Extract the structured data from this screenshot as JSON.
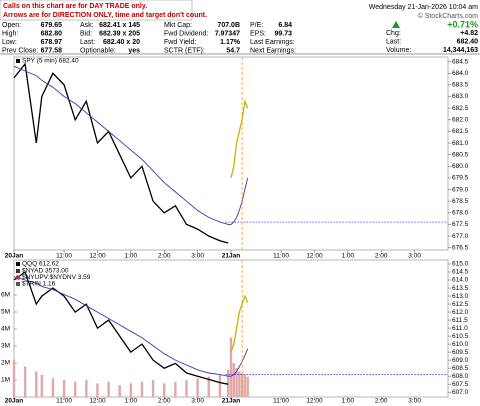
{
  "notice": [
    "Calls on this chart are for DAY TRADE only.",
    "Arrows are for DIRECTION ONLY, time and target don't count."
  ],
  "quote": {
    "rows": [
      [
        [
          "Open:",
          "679.65"
        ],
        [
          "Ask:",
          "682.41 x 145"
        ],
        [
          "Mkt Cap:",
          "707.0B"
        ],
        [
          "P/E:",
          "6.84"
        ]
      ],
      [
        [
          "High:",
          "682.80"
        ],
        [
          "Bid:",
          "682.39 x 205"
        ],
        [
          "Fwd Dividend:",
          "7.97347"
        ],
        [
          "EPS:",
          "99.73"
        ]
      ],
      [
        [
          "Low:",
          "678.97"
        ],
        [
          "Last:",
          "682.40 x 20"
        ],
        [
          "Fwd Yield:",
          "1.17%"
        ],
        [
          "Last Earnings:"
        ]
      ],
      [
        [
          "Prev Close:",
          "677.58"
        ],
        [
          "Optionable:",
          "yes"
        ],
        [
          "SCTR (ETF):",
          "54.7"
        ],
        [
          "Next Earnings:"
        ]
      ]
    ],
    "date": "Wednesday  21-Jan-2026  10:04 am",
    "watermark": "© StockCharts.com",
    "change_pct": "+0.71%",
    "side": [
      [
        "Chg:",
        "+4.82"
      ],
      [
        "Last:",
        "682.40"
      ],
      [
        "Volume:",
        "14,344,163"
      ]
    ]
  },
  "chart_data": [
    {
      "type": "line",
      "title": "SPY (5 min) 682.40",
      "x": [
        0,
        4,
        8,
        10,
        14,
        18,
        22,
        26,
        30,
        34,
        38,
        42,
        46,
        50,
        54,
        58,
        62,
        66,
        70,
        74,
        77,
        78,
        79,
        80,
        81,
        82,
        83,
        84
      ],
      "xlim": [
        0,
        156
      ],
      "xticks": [
        {
          "value": 0,
          "label": "20Jan"
        },
        {
          "value": 18,
          "label": "11:00"
        },
        {
          "value": 30,
          "label": "12:00"
        },
        {
          "value": 42,
          "label": "1:00"
        },
        {
          "value": 54,
          "label": "2:00"
        },
        {
          "value": 66,
          "label": "3:00"
        },
        {
          "value": 78,
          "label": "21Jan"
        },
        {
          "value": 96,
          "label": "11:00"
        },
        {
          "value": 108,
          "label": "12:00"
        },
        {
          "value": 120,
          "label": "1:00"
        },
        {
          "value": 132,
          "label": "2:00"
        },
        {
          "value": 144,
          "label": "3:00"
        }
      ],
      "ylim": [
        676.4,
        684.7
      ],
      "yticks": [
        676.5,
        {
          "value": 677,
          "label": "677.0"
        },
        677.5,
        {
          "value": 678,
          "label": "678.0"
        },
        678.5,
        {
          "value": 679,
          "label": "679.0"
        },
        679.5,
        {
          "value": 680,
          "label": "680.0"
        },
        680.5,
        {
          "value": 681,
          "label": "681.0"
        },
        681.5,
        {
          "value": 682,
          "label": "682.0"
        },
        682.5,
        {
          "value": 683,
          "label": "683.0"
        },
        683.5,
        {
          "value": 684,
          "label": "684.0"
        },
        684.5
      ],
      "series": [
        {
          "name": "SPY",
          "color": "#000000",
          "values": [
            683.8,
            684.4,
            681.0,
            683.0,
            684.0,
            683.5,
            682.0,
            682.8,
            681.0,
            681.5,
            680.5,
            679.5,
            680.0,
            678.5,
            678.0,
            678.3,
            677.5,
            677.3,
            677.0,
            676.8,
            676.7,
            null,
            null,
            null,
            null,
            null,
            null,
            null
          ]
        },
        {
          "color": "#c8b400",
          "values": [
            null,
            null,
            null,
            null,
            null,
            null,
            null,
            null,
            null,
            null,
            null,
            null,
            null,
            null,
            null,
            null,
            null,
            null,
            null,
            null,
            null,
            679.5,
            680.0,
            681.0,
            681.5,
            682.0,
            682.8,
            682.5
          ]
        },
        {
          "color": "#3a3aa8",
          "values": [
            684.3,
            684.1,
            683.9,
            683.7,
            683.4,
            683.0,
            682.7,
            682.3,
            681.9,
            681.5,
            681.1,
            680.7,
            680.3,
            679.8,
            679.3,
            678.9,
            678.5,
            678.1,
            677.8,
            677.6,
            677.5,
            677.5,
            677.6,
            677.8,
            678.1,
            678.5,
            679.0,
            679.5
          ]
        }
      ],
      "level": 677.6,
      "level_color": "#3a3aff",
      "marker_x": 82,
      "marker_color": "#f0a020"
    },
    {
      "type": "line",
      "title": "QQQ 612.62",
      "annotations": [
        "$NYAD 3573.00",
        "$NYUPV:$NYDNV 3.59",
        "$TRIN 1.16"
      ],
      "x": [
        0,
        4,
        8,
        10,
        14,
        18,
        22,
        26,
        30,
        34,
        38,
        42,
        46,
        50,
        54,
        58,
        62,
        66,
        70,
        74,
        77,
        78,
        79,
        80,
        81,
        82,
        83,
        84
      ],
      "xlim": [
        0,
        156
      ],
      "xticks": [
        {
          "value": 0,
          "label": "20Jan"
        },
        {
          "value": 18,
          "label": "11:00"
        },
        {
          "value": 30,
          "label": "12:00"
        },
        {
          "value": 42,
          "label": "1:00"
        },
        {
          "value": 54,
          "label": "2:00"
        },
        {
          "value": 66,
          "label": "3:00"
        },
        {
          "value": 78,
          "label": "21Jan"
        },
        {
          "value": 96,
          "label": "11:00"
        },
        {
          "value": 108,
          "label": "12:00"
        },
        {
          "value": 120,
          "label": "1:00"
        },
        {
          "value": 132,
          "label": "2:00"
        },
        {
          "value": 144,
          "label": "3:00"
        }
      ],
      "ylim": [
        606.7,
        615.25
      ],
      "yticks": [
        {
          "value": 607,
          "label": "607.0"
        },
        607.5,
        {
          "value": 608,
          "label": "608.0"
        },
        608.5,
        {
          "value": 609,
          "label": "609.0"
        },
        609.5,
        {
          "value": 610,
          "label": "610.0"
        },
        610.5,
        {
          "value": 611,
          "label": "611.0"
        },
        611.5,
        {
          "value": 612,
          "label": "612.0"
        },
        612.5,
        {
          "value": 613,
          "label": "613.0"
        },
        613.5,
        {
          "value": 614,
          "label": "614.0"
        },
        614.5,
        {
          "value": 615,
          "label": "615.0"
        }
      ],
      "y2lim": [
        0,
        8060000
      ],
      "y2ticks": [
        {
          "value": 1000000,
          "label": "1M"
        },
        {
          "value": 2000000,
          "label": "2M"
        },
        {
          "value": 3000000,
          "label": "3M"
        },
        {
          "value": 4000000,
          "label": "4M"
        },
        {
          "value": 5000000,
          "label": "5M"
        },
        {
          "value": 6000000,
          "label": "6M"
        }
      ],
      "series": [
        {
          "type": "bar",
          "axis": "y2",
          "color": "#e0a8a8",
          "values": [
            2200000,
            1800000,
            1500000,
            1300000,
            1100000,
            1000000,
            900000,
            1000000,
            800000,
            900000,
            700000,
            800000,
            900000,
            1000000,
            800000,
            900000,
            1000000,
            1100000,
            1200000,
            1300000,
            1600000,
            3500000,
            2000000,
            1700000,
            1500000,
            1400000,
            1300000,
            1200000
          ]
        },
        {
          "color": "#000000",
          "values": [
            614.0,
            614.5,
            612.5,
            613.0,
            613.5,
            613.0,
            612.0,
            612.5,
            611.0,
            611.5,
            610.5,
            609.5,
            610.0,
            609.0,
            608.5,
            608.8,
            608.2,
            608.0,
            607.8,
            607.6,
            607.5,
            null,
            null,
            null,
            null,
            null,
            null,
            null
          ]
        },
        {
          "color": "#c8b400",
          "values": [
            null,
            null,
            null,
            null,
            null,
            null,
            null,
            null,
            null,
            null,
            null,
            null,
            null,
            null,
            null,
            null,
            null,
            null,
            null,
            null,
            null,
            609.5,
            610.0,
            611.0,
            612.0,
            612.5,
            613.0,
            612.6
          ]
        },
        {
          "color": "#3a3aa8",
          "values": [
            614.2,
            614.0,
            613.8,
            613.6,
            613.4,
            613.1,
            612.8,
            612.4,
            612.0,
            611.6,
            611.2,
            610.8,
            610.4,
            609.9,
            609.4,
            609.0,
            608.7,
            608.4,
            608.2,
            608.1,
            608.0,
            608.0,
            608.1,
            608.3,
            608.6,
            608.9,
            609.3,
            609.7
          ]
        }
      ],
      "level": 608.1,
      "level_color": "#3a3aff",
      "marker_x": 82,
      "marker_color": "#f0a020"
    }
  ]
}
